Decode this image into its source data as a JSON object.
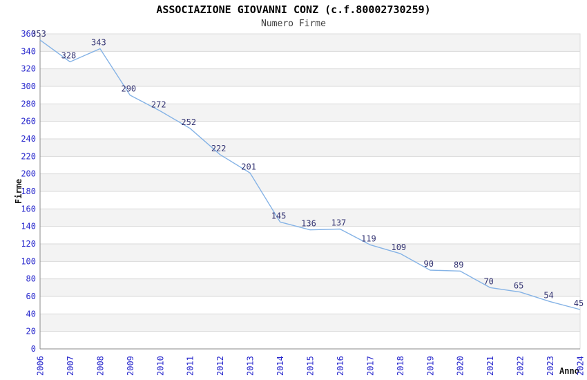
{
  "chart_data": {
    "type": "line",
    "title": "ASSOCIAZIONE GIOVANNI CONZ (c.f.80002730259)",
    "subtitle": "Numero Firme",
    "xlabel": "Anno",
    "ylabel": "Firme",
    "categories": [
      "2006",
      "2007",
      "2008",
      "2009",
      "2010",
      "2011",
      "2012",
      "2013",
      "2014",
      "2015",
      "2016",
      "2017",
      "2018",
      "2019",
      "2020",
      "2021",
      "2022",
      "2023",
      "2024"
    ],
    "series": [
      {
        "name": "Numero Firme",
        "values": [
          353,
          328,
          343,
          290,
          272,
          252,
          222,
          201,
          145,
          136,
          137,
          119,
          109,
          90,
          89,
          70,
          65,
          54,
          45
        ]
      }
    ],
    "ylim": [
      0,
      360
    ],
    "ytick_step": 20,
    "grid": "horizontal-bands",
    "legend_position": "none",
    "colors": {
      "line": "#85b3e6",
      "tick_labels": "#2525cc",
      "point_labels": "#333372",
      "band_gray": "#f3f3f3",
      "band_white": "#ffffff",
      "gridline": "#d9d9d9",
      "axis_line": "#8a8a8a",
      "frame": "#dcdcdc",
      "title": "#000000",
      "subtitle": "#3b3b3b"
    }
  }
}
